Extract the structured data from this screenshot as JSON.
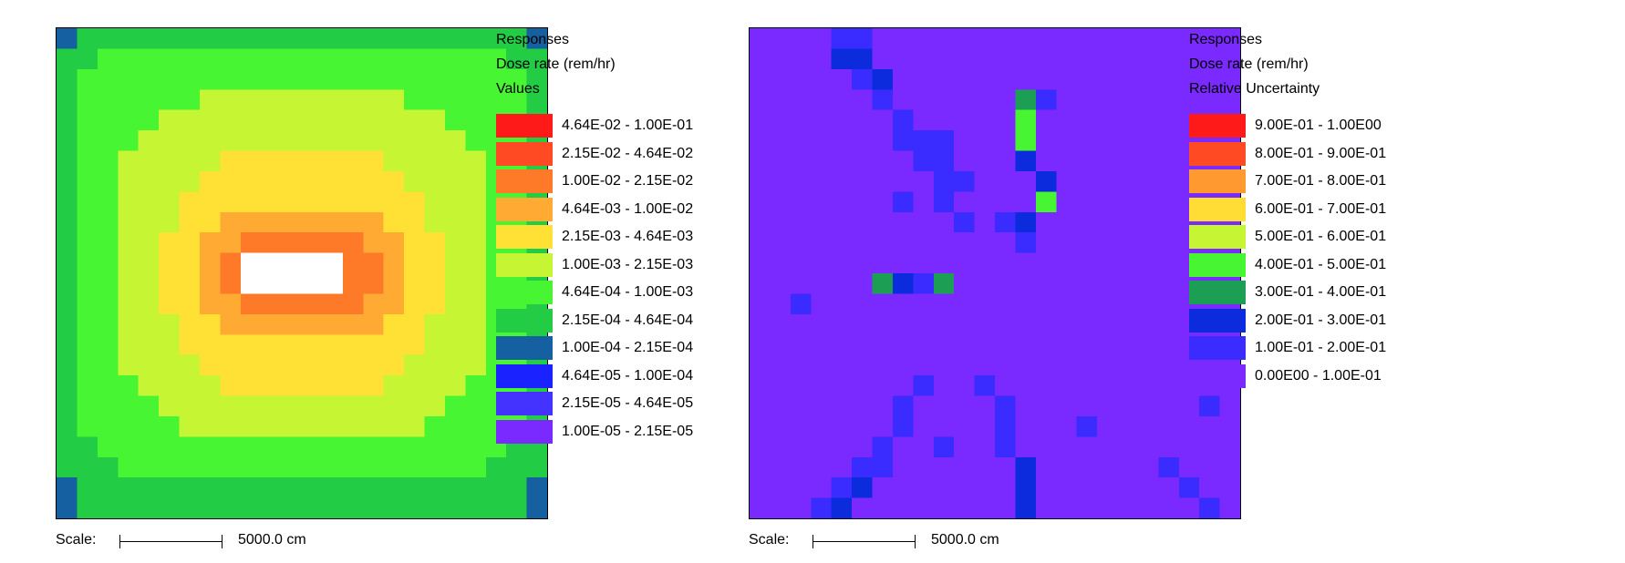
{
  "chart_data": [
    {
      "type": "heatmap",
      "grid_size": [
        24,
        24
      ],
      "legend": {
        "heading": [
          "Responses",
          "Dose rate (rem/hr)",
          "Values"
        ],
        "bins": [
          {
            "label": "4.64E-02 - 1.00E-01",
            "color": "#ff1a1a"
          },
          {
            "label": "2.15E-02 - 4.64E-02",
            "color": "#ff4a23"
          },
          {
            "label": "1.00E-02 - 2.15E-02",
            "color": "#ff7a28"
          },
          {
            "label": "4.64E-03 - 1.00E-02",
            "color": "#ffaa33"
          },
          {
            "label": "2.15E-03 - 4.64E-03",
            "color": "#ffe135"
          },
          {
            "label": "1.00E-03 - 2.15E-03",
            "color": "#c5f533"
          },
          {
            "label": "4.64E-04 - 1.00E-03",
            "color": "#48f533"
          },
          {
            "label": "2.15E-04 - 4.64E-04",
            "color": "#22cc44"
          },
          {
            "label": "1.00E-04 - 2.15E-04",
            "color": "#1560a0"
          },
          {
            "label": "4.64E-05 - 1.00E-04",
            "color": "#1a22ff"
          },
          {
            "label": "2.15E-05 - 4.64E-05",
            "color": "#4433ff"
          },
          {
            "label": "1.00E-05 - 2.15E-05",
            "color": "#7a2aff"
          }
        ]
      },
      "center_cell_color": "#ffffff",
      "level_rings": [
        [
          8,
          7,
          7,
          7,
          7,
          7,
          7,
          7,
          7,
          7,
          7,
          7,
          7,
          7,
          7,
          7,
          7,
          7,
          7,
          7,
          7,
          7,
          7,
          8
        ],
        [
          7,
          7,
          6,
          6,
          6,
          6,
          6,
          6,
          6,
          6,
          6,
          6,
          6,
          6,
          6,
          6,
          6,
          6,
          6,
          6,
          6,
          6,
          7,
          7
        ],
        [
          7,
          6,
          6,
          6,
          6,
          6,
          6,
          6,
          6,
          6,
          6,
          6,
          6,
          6,
          6,
          6,
          6,
          6,
          6,
          6,
          6,
          6,
          6,
          7
        ],
        [
          7,
          6,
          6,
          6,
          6,
          6,
          6,
          5,
          5,
          5,
          5,
          5,
          5,
          5,
          5,
          5,
          5,
          6,
          6,
          6,
          6,
          6,
          6,
          7
        ],
        [
          7,
          6,
          6,
          6,
          6,
          5,
          5,
          5,
          5,
          5,
          5,
          5,
          5,
          5,
          5,
          5,
          5,
          5,
          5,
          6,
          6,
          6,
          6,
          7
        ],
        [
          7,
          6,
          6,
          6,
          5,
          5,
          5,
          5,
          5,
          5,
          5,
          5,
          5,
          5,
          5,
          5,
          5,
          5,
          5,
          5,
          6,
          6,
          6,
          7
        ],
        [
          7,
          6,
          6,
          5,
          5,
          5,
          5,
          5,
          4,
          4,
          4,
          4,
          4,
          4,
          4,
          4,
          5,
          5,
          5,
          5,
          5,
          6,
          6,
          7
        ],
        [
          7,
          6,
          6,
          5,
          5,
          5,
          5,
          4,
          4,
          4,
          4,
          4,
          4,
          4,
          4,
          4,
          4,
          5,
          5,
          5,
          5,
          6,
          6,
          7
        ],
        [
          7,
          6,
          6,
          5,
          5,
          5,
          4,
          4,
          4,
          4,
          4,
          4,
          4,
          4,
          4,
          4,
          4,
          4,
          5,
          5,
          5,
          6,
          6,
          7
        ],
        [
          7,
          6,
          6,
          5,
          5,
          5,
          4,
          4,
          3,
          3,
          3,
          3,
          3,
          3,
          3,
          3,
          4,
          4,
          5,
          5,
          5,
          6,
          6,
          7
        ],
        [
          7,
          6,
          6,
          5,
          5,
          4,
          4,
          3,
          3,
          2,
          2,
          2,
          2,
          2,
          2,
          3,
          3,
          4,
          4,
          5,
          5,
          6,
          6,
          7
        ],
        [
          7,
          6,
          6,
          5,
          5,
          4,
          4,
          3,
          2,
          -1,
          -1,
          -1,
          -1,
          -1,
          2,
          2,
          3,
          4,
          4,
          5,
          5,
          6,
          6,
          7
        ],
        [
          7,
          6,
          6,
          5,
          5,
          4,
          4,
          3,
          2,
          -1,
          -1,
          -1,
          -1,
          -1,
          2,
          2,
          3,
          4,
          4,
          5,
          5,
          6,
          6,
          7
        ],
        [
          7,
          6,
          6,
          5,
          5,
          4,
          4,
          3,
          3,
          2,
          2,
          2,
          2,
          2,
          2,
          3,
          3,
          4,
          4,
          5,
          5,
          6,
          6,
          7
        ],
        [
          7,
          6,
          6,
          5,
          5,
          5,
          4,
          4,
          3,
          3,
          3,
          3,
          3,
          3,
          3,
          3,
          4,
          4,
          5,
          5,
          5,
          6,
          6,
          7
        ],
        [
          7,
          6,
          6,
          5,
          5,
          5,
          4,
          4,
          4,
          4,
          4,
          4,
          4,
          4,
          4,
          4,
          4,
          4,
          5,
          5,
          5,
          6,
          6,
          7
        ],
        [
          7,
          6,
          6,
          5,
          5,
          5,
          5,
          4,
          4,
          4,
          4,
          4,
          4,
          4,
          4,
          4,
          4,
          5,
          5,
          5,
          5,
          6,
          6,
          7
        ],
        [
          7,
          6,
          6,
          6,
          5,
          5,
          5,
          5,
          4,
          4,
          4,
          4,
          4,
          4,
          4,
          4,
          5,
          5,
          5,
          5,
          6,
          6,
          6,
          7
        ],
        [
          7,
          6,
          6,
          6,
          6,
          5,
          5,
          5,
          5,
          5,
          5,
          5,
          5,
          5,
          5,
          5,
          5,
          5,
          5,
          6,
          6,
          6,
          6,
          7
        ],
        [
          7,
          6,
          6,
          6,
          6,
          6,
          5,
          5,
          5,
          5,
          5,
          5,
          5,
          5,
          5,
          5,
          5,
          5,
          6,
          6,
          6,
          6,
          6,
          7
        ],
        [
          7,
          7,
          6,
          6,
          6,
          6,
          6,
          6,
          6,
          6,
          6,
          6,
          6,
          6,
          6,
          6,
          6,
          6,
          6,
          6,
          6,
          6,
          7,
          7
        ],
        [
          7,
          7,
          7,
          6,
          6,
          6,
          6,
          6,
          6,
          6,
          6,
          6,
          6,
          6,
          6,
          6,
          6,
          6,
          6,
          6,
          6,
          7,
          7,
          7
        ],
        [
          8,
          7,
          7,
          7,
          7,
          7,
          7,
          7,
          7,
          7,
          7,
          7,
          7,
          7,
          7,
          7,
          7,
          7,
          7,
          7,
          7,
          7,
          7,
          8
        ],
        [
          8,
          7,
          7,
          7,
          7,
          7,
          7,
          7,
          7,
          7,
          7,
          7,
          7,
          7,
          7,
          7,
          7,
          7,
          7,
          7,
          7,
          7,
          7,
          8
        ]
      ],
      "scale": {
        "label": "Scale:",
        "value": "5000.0 cm"
      }
    },
    {
      "type": "heatmap",
      "grid_size": [
        24,
        24
      ],
      "legend": {
        "heading": [
          "Responses",
          "Dose rate (rem/hr)",
          "Relative Uncertainty"
        ],
        "bins": [
          {
            "label": "9.00E-01 - 1.00E00",
            "color": "#ff1a1a"
          },
          {
            "label": "8.00E-01 - 9.00E-01",
            "color": "#ff4a23"
          },
          {
            "label": "7.00E-01 - 8.00E-01",
            "color": "#ff9930"
          },
          {
            "label": "6.00E-01 - 7.00E-01",
            "color": "#ffdd35"
          },
          {
            "label": "5.00E-01 - 6.00E-01",
            "color": "#c5f533"
          },
          {
            "label": "4.00E-01 - 5.00E-01",
            "color": "#48f533"
          },
          {
            "label": "3.00E-01 - 4.00E-01",
            "color": "#1d9e55"
          },
          {
            "label": "2.00E-01 - 3.00E-01",
            "color": "#0b2bdd"
          },
          {
            "label": "1.00E-01 - 2.00E-01",
            "color": "#3a2cff"
          },
          {
            "label": "0.00E00 - 1.00E-01",
            "color": "#7a2aff"
          }
        ]
      },
      "background_bin": 9,
      "cells": [
        [
          0,
          4,
          8
        ],
        [
          0,
          5,
          8
        ],
        [
          1,
          4,
          7
        ],
        [
          1,
          5,
          7
        ],
        [
          2,
          5,
          8
        ],
        [
          2,
          6,
          7
        ],
        [
          3,
          6,
          8
        ],
        [
          3,
          13,
          6
        ],
        [
          3,
          14,
          8
        ],
        [
          4,
          7,
          8
        ],
        [
          4,
          13,
          5
        ],
        [
          5,
          7,
          8
        ],
        [
          5,
          8,
          8
        ],
        [
          5,
          9,
          8
        ],
        [
          5,
          13,
          5
        ],
        [
          6,
          8,
          8
        ],
        [
          6,
          9,
          8
        ],
        [
          6,
          13,
          7
        ],
        [
          7,
          9,
          8
        ],
        [
          7,
          10,
          8
        ],
        [
          7,
          14,
          7
        ],
        [
          8,
          7,
          8
        ],
        [
          8,
          9,
          8
        ],
        [
          8,
          14,
          5
        ],
        [
          9,
          10,
          8
        ],
        [
          9,
          12,
          8
        ],
        [
          9,
          13,
          7
        ],
        [
          10,
          13,
          8
        ],
        [
          12,
          6,
          6
        ],
        [
          12,
          7,
          7
        ],
        [
          12,
          8,
          8
        ],
        [
          12,
          9,
          6
        ],
        [
          13,
          2,
          8
        ],
        [
          17,
          8,
          8
        ],
        [
          17,
          11,
          8
        ],
        [
          18,
          7,
          8
        ],
        [
          18,
          12,
          8
        ],
        [
          18,
          22,
          8
        ],
        [
          19,
          7,
          8
        ],
        [
          19,
          12,
          8
        ],
        [
          19,
          16,
          8
        ],
        [
          20,
          6,
          8
        ],
        [
          20,
          9,
          8
        ],
        [
          20,
          12,
          8
        ],
        [
          21,
          5,
          8
        ],
        [
          21,
          6,
          8
        ],
        [
          21,
          13,
          7
        ],
        [
          21,
          20,
          8
        ],
        [
          22,
          4,
          8
        ],
        [
          22,
          5,
          7
        ],
        [
          22,
          13,
          7
        ],
        [
          22,
          21,
          8
        ],
        [
          23,
          3,
          8
        ],
        [
          23,
          4,
          7
        ],
        [
          23,
          13,
          7
        ],
        [
          23,
          22,
          8
        ]
      ],
      "scale": {
        "label": "Scale:",
        "value": "5000.0 cm"
      }
    }
  ]
}
